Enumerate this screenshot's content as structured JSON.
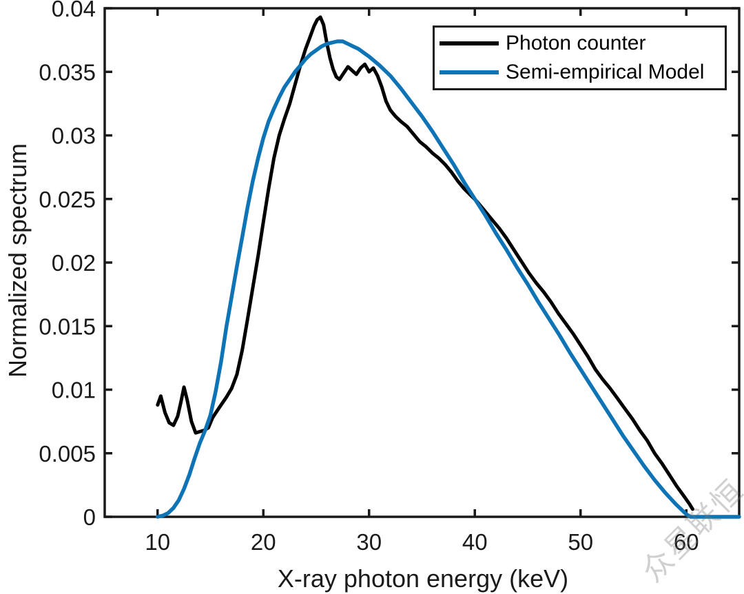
{
  "watermark": {
    "text": "众星联恒",
    "color": "rgba(120,120,120,0.35)"
  },
  "chart_data": {
    "type": "line",
    "title": "",
    "xlabel": "X-ray photon energy (keV)",
    "ylabel": "Normalized spectrum",
    "xlim": [
      5,
      65
    ],
    "ylim": [
      0,
      0.04
    ],
    "x_ticks": [
      10,
      20,
      30,
      40,
      50,
      60
    ],
    "x_tick_labels": [
      "10",
      "20",
      "30",
      "40",
      "50",
      "60"
    ],
    "y_ticks": [
      0,
      0.005,
      0.01,
      0.015,
      0.02,
      0.025,
      0.03,
      0.035,
      0.04
    ],
    "y_tick_labels": [
      "0",
      "0.005",
      "0.01",
      "0.015",
      "0.02",
      "0.025",
      "0.03",
      "0.035",
      "0.04"
    ],
    "grid": false,
    "legend_position": "top-right",
    "axis_color": "#1a1a1a",
    "background": "#ffffff",
    "series": [
      {
        "name": "Photon counter",
        "color": "#000000",
        "x": [
          10.0,
          10.3,
          10.7,
          11.1,
          11.5,
          11.9,
          12.2,
          12.5,
          12.8,
          13.2,
          13.6,
          14.0,
          14.4,
          14.8,
          15.2,
          15.6,
          16.0,
          16.5,
          17.0,
          17.5,
          18.0,
          18.5,
          19.0,
          19.5,
          20.0,
          20.5,
          21.0,
          21.5,
          22.0,
          22.5,
          23.0,
          23.5,
          24.0,
          24.4,
          24.8,
          25.1,
          25.4,
          25.7,
          26.0,
          26.3,
          26.6,
          26.9,
          27.2,
          27.6,
          28.0,
          28.4,
          28.8,
          29.2,
          29.6,
          30.0,
          30.4,
          30.8,
          31.2,
          31.6,
          32.0,
          32.5,
          33.0,
          33.6,
          34.2,
          34.8,
          35.4,
          36.0,
          36.6,
          37.2,
          37.8,
          38.4,
          39.0,
          39.6,
          40.2,
          40.9,
          41.6,
          42.3,
          43.0,
          43.7,
          44.4,
          45.1,
          45.8,
          46.5,
          47.2,
          47.9,
          48.6,
          49.3,
          50.0,
          50.7,
          51.4,
          52.1,
          52.8,
          53.5,
          54.2,
          54.9,
          55.6,
          56.3,
          57.0,
          57.7,
          58.4,
          59.1,
          59.8,
          60.3,
          60.6
        ],
        "y": [
          0.0088,
          0.0095,
          0.0082,
          0.0074,
          0.0072,
          0.0079,
          0.009,
          0.0102,
          0.0092,
          0.0075,
          0.0066,
          0.0067,
          0.0068,
          0.007,
          0.0078,
          0.0083,
          0.0088,
          0.0094,
          0.0101,
          0.0112,
          0.0131,
          0.0155,
          0.018,
          0.0205,
          0.0232,
          0.0258,
          0.0282,
          0.03,
          0.0313,
          0.0325,
          0.034,
          0.0355,
          0.0368,
          0.0377,
          0.0386,
          0.0391,
          0.0393,
          0.0387,
          0.0373,
          0.0361,
          0.0352,
          0.0346,
          0.0344,
          0.0349,
          0.0354,
          0.0351,
          0.0348,
          0.0353,
          0.0356,
          0.035,
          0.0353,
          0.0347,
          0.0338,
          0.0327,
          0.032,
          0.0315,
          0.0311,
          0.0307,
          0.0301,
          0.0295,
          0.0291,
          0.0286,
          0.0282,
          0.0277,
          0.0271,
          0.0264,
          0.0258,
          0.0253,
          0.0248,
          0.0241,
          0.0234,
          0.0227,
          0.0219,
          0.021,
          0.0201,
          0.0192,
          0.0184,
          0.0177,
          0.0169,
          0.016,
          0.0152,
          0.0144,
          0.0135,
          0.0126,
          0.0116,
          0.0108,
          0.0101,
          0.0093,
          0.0085,
          0.0077,
          0.0068,
          0.006,
          0.005,
          0.0042,
          0.0033,
          0.0024,
          0.0016,
          0.001,
          0.0006
        ]
      },
      {
        "name": "Semi-empirical Model",
        "color": "#0e74b6",
        "x": [
          10.0,
          10.5,
          11.0,
          11.5,
          12.0,
          12.5,
          13.0,
          13.5,
          14.0,
          14.5,
          15.0,
          15.5,
          16.0,
          16.5,
          17.0,
          17.5,
          18.0,
          18.5,
          19.0,
          19.5,
          20.0,
          20.5,
          21.0,
          21.5,
          22.0,
          22.5,
          23.0,
          23.5,
          24.0,
          24.5,
          25.0,
          25.5,
          26.0,
          26.5,
          27.0,
          27.5,
          28.0,
          28.5,
          29.0,
          29.5,
          30.0,
          31.0,
          32.0,
          33.0,
          34.0,
          35.0,
          36.0,
          37.0,
          38.0,
          39.0,
          40.0,
          41.0,
          42.0,
          43.0,
          44.0,
          45.0,
          46.0,
          47.0,
          48.0,
          49.0,
          50.0,
          51.0,
          52.0,
          53.0,
          54.0,
          55.0,
          56.0,
          57.0,
          58.0,
          59.0,
          60.0,
          60.4,
          65.0
        ],
        "y": [
          0.0,
          0.0001,
          0.0003,
          0.0007,
          0.0013,
          0.0022,
          0.0033,
          0.0046,
          0.0058,
          0.0068,
          0.008,
          0.0099,
          0.0122,
          0.0149,
          0.0173,
          0.0197,
          0.022,
          0.0243,
          0.0264,
          0.0282,
          0.0298,
          0.0311,
          0.0321,
          0.033,
          0.0338,
          0.0344,
          0.035,
          0.0355,
          0.036,
          0.0364,
          0.0367,
          0.037,
          0.0372,
          0.0373,
          0.0374,
          0.0374,
          0.0372,
          0.037,
          0.0368,
          0.0365,
          0.0362,
          0.0355,
          0.0347,
          0.0337,
          0.0326,
          0.0315,
          0.0303,
          0.029,
          0.0277,
          0.0263,
          0.025,
          0.0237,
          0.0223,
          0.021,
          0.0196,
          0.0183,
          0.0169,
          0.0156,
          0.0143,
          0.0129,
          0.0116,
          0.0103,
          0.009,
          0.0077,
          0.0064,
          0.0052,
          0.004,
          0.0029,
          0.0019,
          0.001,
          0.0002,
          0.0,
          0.0
        ]
      }
    ]
  }
}
